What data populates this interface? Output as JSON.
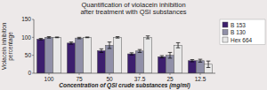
{
  "chart_data": {
    "type": "bar",
    "title": "Quantification of violacein inhibition\nafter treatment with QSI substances",
    "xlabel": "Concentration of QSI crude substances (mg/ml)",
    "ylabel": "Violacein inhibition\npercentage",
    "categories": [
      "100",
      "75",
      "50",
      "37.5",
      "25",
      "12.5"
    ],
    "series": [
      {
        "name": "B 153",
        "color": "#3d1f6e",
        "values": [
          95,
          84,
          63,
          54,
          46,
          35
        ],
        "errors": [
          2,
          3,
          5,
          3,
          3,
          3
        ]
      },
      {
        "name": "B 130",
        "color": "#9090a8",
        "values": [
          100,
          98,
          78,
          62,
          50,
          35
        ],
        "errors": [
          2,
          2,
          9,
          4,
          8,
          4
        ]
      },
      {
        "name": "Hex 664",
        "color": "#e8e8e8",
        "values": [
          100,
          100,
          100,
          100,
          78,
          25
        ],
        "errors": [
          1,
          1,
          2,
          4,
          7,
          9
        ]
      }
    ],
    "ylim": [
      0,
      150
    ],
    "yticks": [
      0,
      50,
      100,
      150
    ],
    "grid": false,
    "legend": "upper right"
  }
}
